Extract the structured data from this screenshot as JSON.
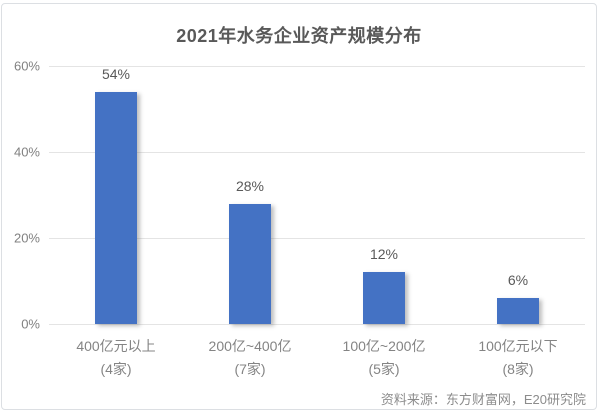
{
  "chart_data": {
    "type": "bar",
    "title": "2021年水务企业资产规模分布",
    "xlabel": "",
    "ylabel": "",
    "ylim": [
      0,
      60
    ],
    "grid": true,
    "legend": false,
    "bar_color": "#4472C4",
    "y_ticks": [
      {
        "label": "60%",
        "value": 60
      },
      {
        "label": "40%",
        "value": 40
      },
      {
        "label": "20%",
        "value": 20
      },
      {
        "label": "0%",
        "value": 0
      }
    ],
    "categories": [
      "400亿元以上",
      "200亿~400亿",
      "100亿~200亿",
      "100亿元以下"
    ],
    "values": [
      54,
      28,
      12,
      6
    ],
    "bars": [
      {
        "category": "400亿元以上",
        "count": "(4家)",
        "value": 54,
        "label": "54%"
      },
      {
        "category": "200亿~400亿",
        "count": "(7家)",
        "value": 28,
        "label": "28%"
      },
      {
        "category": "100亿~200亿",
        "count": "(5家)",
        "value": 12,
        "label": "12%"
      },
      {
        "category": "100亿元以下",
        "count": "(8家)",
        "value": 6,
        "label": "6%"
      }
    ],
    "source": "资料来源：东方财富网，E20研究院"
  },
  "colors": {
    "bar": "#4472C4",
    "title_text": "#595959",
    "axis_text": "#848484",
    "gridline": "#e4e4e4",
    "card_border": "#dcdfe3",
    "background": "#ffffff"
  }
}
